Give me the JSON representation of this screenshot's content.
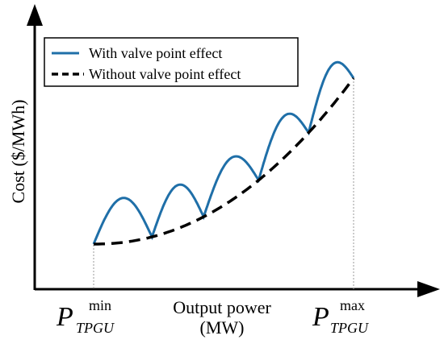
{
  "chart_data": {
    "type": "line",
    "title": "",
    "xlabel": [
      "Output power",
      "(MW)"
    ],
    "ylabel": "Cost ($/MWh)",
    "grid": false,
    "legend_position": "top-left",
    "x_ticks": [
      {
        "main": "P",
        "sup": "min",
        "sub": "TPGU"
      },
      {
        "main": "P",
        "sup": "max",
        "sub": "TPGU"
      }
    ],
    "series": [
      {
        "name": "With valve point effect",
        "style": "solid",
        "color": "#1f6fa8",
        "pattern": "rectified-sine ripples",
        "ripple_count": 5,
        "x_fraction_bounds": [
          0.0,
          0.2244,
          0.4231,
          0.6346,
          0.8269,
          1.0
        ]
      },
      {
        "name": "Without valve point effect",
        "style": "dashed",
        "color": "#000000",
        "pattern": "convex quadratic"
      }
    ]
  }
}
